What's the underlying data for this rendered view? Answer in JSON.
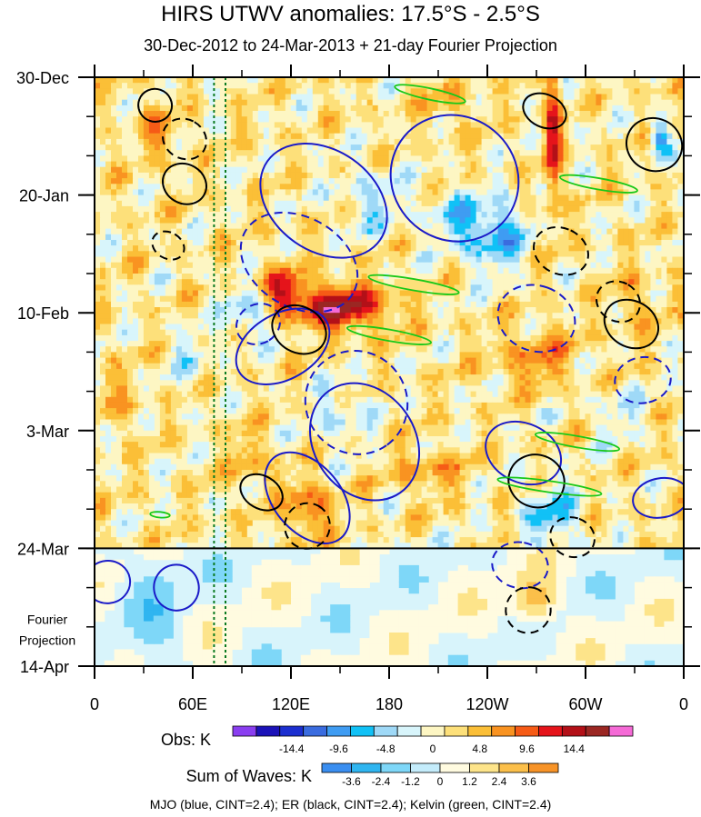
{
  "chart_data": {
    "type": "heatmap",
    "title": "HIRS UTWV anomalies: 17.5°S - 2.5°S",
    "subtitle": "30-Dec-2012 to 24-Mar-2013 + 21-day Fourier Projection",
    "x_ticks": [
      "0",
      "60E",
      "120E",
      "180",
      "120W",
      "60W",
      "0"
    ],
    "x_tick_lons": [
      0,
      60,
      120,
      180,
      240,
      300,
      360
    ],
    "y_ticks": [
      "30-Dec",
      "20-Jan",
      "10-Feb",
      "3-Mar",
      "24-Mar",
      "14-Apr"
    ],
    "y_tick_days": [
      0,
      21,
      42,
      63,
      84,
      105
    ],
    "projection_label_line1": "Fourier",
    "projection_label_line2": "Projection",
    "projection_start_day": 84,
    "obs_end_day": 84,
    "total_days": 105,
    "green_dotted_lons": [
      73,
      80
    ],
    "obs_legend": {
      "label": "Obs: K",
      "tick_labels": [
        "-14.4",
        "-9.6",
        "-4.8",
        "0",
        "4.8",
        "9.6",
        "14.4"
      ],
      "colors": [
        "#8a3ef0",
        "#1b12b8",
        "#1c2fd0",
        "#3a6cdf",
        "#3f9cf2",
        "#11c1f6",
        "#9fd9f7",
        "#d8f5fb",
        "#fdf6c3",
        "#fde07a",
        "#fbbf37",
        "#f99321",
        "#f65b16",
        "#e5141b",
        "#b31018",
        "#9b2723",
        "#f56ad6"
      ]
    },
    "waves_legend": {
      "label": "Sum of Waves: K",
      "tick_labels": [
        "-3.6",
        "-2.4",
        "-1.2",
        "0",
        "1.2",
        "2.4",
        "3.6"
      ],
      "colors": [
        "#3a8ef0",
        "#2fb5f0",
        "#7ed7f8",
        "#c4ecfb",
        "#fffbe0",
        "#fde48a",
        "#fbbf4a",
        "#f79327"
      ]
    },
    "footnote": "MJO (blue, CINT=2.4); ER (black, CINT=2.4); Kelvin (green, CINT=2.4)",
    "contour_colors": {
      "MJO": "#1a1ac8",
      "ER": "#000000",
      "Kelvin": "#18c818"
    },
    "mjo_contours": [
      {
        "lon": 140,
        "day": 22,
        "rlon": 42,
        "rday": 9,
        "rot": 35,
        "dash": false
      },
      {
        "lon": 220,
        "day": 18,
        "rlon": 40,
        "rday": 11,
        "rot": 40,
        "dash": false
      },
      {
        "lon": 115,
        "day": 48,
        "rlon": 20,
        "rday": 9,
        "rot": 60,
        "dash": false
      },
      {
        "lon": 165,
        "day": 65,
        "rlon": 38,
        "rday": 9,
        "rot": 55,
        "dash": false
      },
      {
        "lon": 130,
        "day": 75,
        "rlon": 32,
        "rday": 6,
        "rot": 50,
        "dash": false
      },
      {
        "lon": 262,
        "day": 67,
        "rlon": 18,
        "rday": 7,
        "rot": -65,
        "dash": false
      },
      {
        "lon": 346,
        "day": 75,
        "rlon": 12,
        "rday": 5,
        "rot": 80,
        "dash": false
      },
      {
        "lon": 50,
        "day": 91,
        "rlon": 14,
        "rday": 4,
        "rot": 80,
        "dash": false
      },
      {
        "lon": 8,
        "day": 90,
        "rlon": 13,
        "rday": 4,
        "rot": 85,
        "dash": false
      },
      {
        "lon": 125,
        "day": 33,
        "rlon": 38,
        "rday": 8,
        "rot": 30,
        "dash": true
      },
      {
        "lon": 160,
        "day": 58,
        "rlon": 32,
        "rday": 9,
        "rot": 55,
        "dash": true
      },
      {
        "lon": 270,
        "day": 43,
        "rlon": 20,
        "rday": 7,
        "rot": -70,
        "dash": true
      },
      {
        "lon": 260,
        "day": 87,
        "rlon": 14,
        "rday": 5,
        "rot": -80,
        "dash": true
      },
      {
        "lon": 335,
        "day": 54,
        "rlon": 14,
        "rday": 5,
        "rot": 80,
        "dash": true
      },
      {
        "lon": 100,
        "day": 44,
        "rlon": 12,
        "rday": 4,
        "rot": 60,
        "dash": true
      }
    ],
    "er_contours": [
      {
        "lon": 37,
        "day": 5,
        "rlon": 10,
        "rday": 3,
        "rot": -70,
        "dash": false
      },
      {
        "lon": 55,
        "day": 19,
        "rlon": 12,
        "rday": 4,
        "rot": -60,
        "dash": false
      },
      {
        "lon": 125,
        "day": 45,
        "rlon": 14,
        "rday": 5,
        "rot": -60,
        "dash": false
      },
      {
        "lon": 275,
        "day": 6,
        "rlon": 10,
        "rday": 4,
        "rot": -65,
        "dash": false
      },
      {
        "lon": 342,
        "day": 12,
        "rlon": 16,
        "rday": 5,
        "rot": -65,
        "dash": false
      },
      {
        "lon": 328,
        "day": 44,
        "rlon": 14,
        "rday": 5,
        "rot": -60,
        "dash": false
      },
      {
        "lon": 270,
        "day": 72,
        "rlon": 16,
        "rday": 5,
        "rot": -70,
        "dash": false
      },
      {
        "lon": 102,
        "day": 74,
        "rlon": 10,
        "rday": 4,
        "rot": -60,
        "dash": false
      },
      {
        "lon": 45,
        "day": 30,
        "rlon": 8,
        "rday": 3,
        "rot": -60,
        "dash": true
      },
      {
        "lon": 55,
        "day": 11,
        "rlon": 12,
        "rday": 4,
        "rot": -60,
        "dash": true
      },
      {
        "lon": 285,
        "day": 31,
        "rlon": 14,
        "rday": 5,
        "rot": -65,
        "dash": true
      },
      {
        "lon": 292,
        "day": 82,
        "rlon": 12,
        "rday": 4,
        "rot": -70,
        "dash": true
      },
      {
        "lon": 130,
        "day": 80,
        "rlon": 14,
        "rday": 4,
        "rot": -60,
        "dash": true
      },
      {
        "lon": 265,
        "day": 95,
        "rlon": 14,
        "rday": 4,
        "rot": -75,
        "dash": true
      },
      {
        "lon": 320,
        "day": 40,
        "rlon": 12,
        "rday": 4,
        "rot": -60,
        "dash": true
      }
    ],
    "kelvin_contours": [
      {
        "lon": 205,
        "day": 3,
        "rlon": 22,
        "rday": 1,
        "rot": 12
      },
      {
        "lon": 308,
        "day": 19,
        "rlon": 24,
        "rday": 1,
        "rot": 10
      },
      {
        "lon": 195,
        "day": 37,
        "rlon": 28,
        "rday": 1,
        "rot": 10
      },
      {
        "lon": 180,
        "day": 46,
        "rlon": 26,
        "rday": 1,
        "rot": 10
      },
      {
        "lon": 295,
        "day": 65,
        "rlon": 26,
        "rday": 1,
        "rot": 10
      },
      {
        "lon": 278,
        "day": 73,
        "rlon": 32,
        "rday": 1,
        "rot": 8
      },
      {
        "lon": 40,
        "day": 78,
        "rlon": 6,
        "rday": 0.5,
        "rot": 5
      }
    ],
    "hotspots": [
      {
        "lon": 150,
        "day": 41,
        "strength": 14,
        "rlon": 30,
        "rday": 4
      },
      {
        "lon": 115,
        "day": 38,
        "strength": 9,
        "rlon": 16,
        "rday": 4
      },
      {
        "lon": 280,
        "day": 10,
        "strength": 11,
        "rlon": 5,
        "rday": 14
      },
      {
        "lon": 270,
        "day": 50,
        "strength": 6,
        "rlon": 25,
        "rday": 5
      },
      {
        "lon": 130,
        "day": 77,
        "strength": 8,
        "rlon": 14,
        "rday": 5
      },
      {
        "lon": 40,
        "day": 10,
        "strength": 5,
        "rlon": 12,
        "rday": 5
      },
      {
        "lon": 205,
        "day": 70,
        "strength": 5,
        "rlon": 20,
        "rday": 4
      },
      {
        "lon": 95,
        "day": 68,
        "strength": 5,
        "rlon": 10,
        "rday": 5
      },
      {
        "lon": 350,
        "day": 90,
        "strength": 4,
        "rlon": 12,
        "rday": 5
      },
      {
        "lon": 215,
        "day": 5,
        "strength": 4,
        "rlon": 16,
        "rday": 4
      },
      {
        "lon": 330,
        "day": 40,
        "strength": 4,
        "rlon": 14,
        "rday": 6
      },
      {
        "lon": 15,
        "day": 58,
        "strength": 3,
        "rlon": 14,
        "rday": 6
      }
    ],
    "coldspots": [
      {
        "lon": 245,
        "day": 28,
        "strength": -10,
        "rlon": 18,
        "rday": 6
      },
      {
        "lon": 345,
        "day": 11,
        "strength": -12,
        "rlon": 5,
        "rday": 3
      },
      {
        "lon": 95,
        "day": 42,
        "strength": -7,
        "rlon": 14,
        "rday": 5
      },
      {
        "lon": 170,
        "day": 22,
        "strength": -5,
        "rlon": 22,
        "rday": 6
      },
      {
        "lon": 280,
        "day": 78,
        "strength": -7,
        "rlon": 18,
        "rday": 6
      },
      {
        "lon": 220,
        "day": 25,
        "strength": -6,
        "rlon": 14,
        "rday": 5
      },
      {
        "lon": 150,
        "day": 60,
        "strength": -5,
        "rlon": 16,
        "rday": 5
      },
      {
        "lon": 60,
        "day": 50,
        "strength": -4,
        "rlon": 12,
        "rday": 5
      },
      {
        "lon": 320,
        "day": 60,
        "strength": -4,
        "rlon": 14,
        "rday": 5
      },
      {
        "lon": 200,
        "day": 88,
        "strength": -3,
        "rlon": 40,
        "rday": 5
      }
    ]
  }
}
